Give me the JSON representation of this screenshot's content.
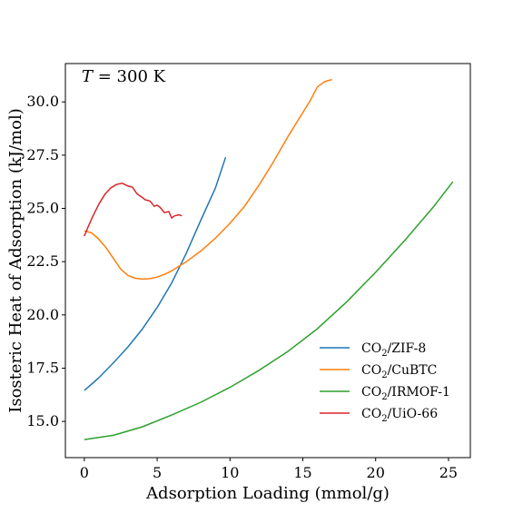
{
  "chart_data": {
    "type": "line",
    "title": "",
    "annotation": {
      "var": "T",
      "text": " = 300 K"
    },
    "xlabel": "Adsorption Loading (mmol/g)",
    "ylabel": "Isosteric Heat of Adsorption (kJ/mol)",
    "xlim": [
      -1.3,
      26.5
    ],
    "ylim": [
      13.3,
      31.8
    ],
    "xticks": [
      0,
      5,
      10,
      15,
      20,
      25
    ],
    "xtick_labels": [
      "0",
      "5",
      "10",
      "15",
      "20",
      "25"
    ],
    "yticks": [
      15.0,
      17.5,
      20.0,
      22.5,
      25.0,
      27.5,
      30.0
    ],
    "ytick_labels": [
      "15.0",
      "17.5",
      "20.0",
      "22.5",
      "25.0",
      "27.5",
      "30.0"
    ],
    "grid": false,
    "legend_position": "lower-right",
    "series": [
      {
        "name": "CO2/ZIF-8",
        "legend_main": "CO",
        "legend_sub": "2",
        "legend_rest": "/ZIF-8",
        "color": "#1f77b4",
        "x": [
          0.0,
          1.0,
          2.0,
          3.0,
          4.0,
          5.0,
          6.0,
          7.0,
          8.0,
          9.0,
          9.7
        ],
        "y": [
          16.45,
          17.05,
          17.75,
          18.5,
          19.35,
          20.35,
          21.5,
          22.9,
          24.45,
          25.95,
          27.4
        ]
      },
      {
        "name": "CO2/CuBTC",
        "legend_main": "CO",
        "legend_sub": "2",
        "legend_rest": "/CuBTC",
        "color": "#ff7f0e",
        "x": [
          0.0,
          0.5,
          1.0,
          1.5,
          2.0,
          2.5,
          3.0,
          3.5,
          4.0,
          4.5,
          5.0,
          5.5,
          6.0,
          7.0,
          8.0,
          9.0,
          10.0,
          11.0,
          12.0,
          13.0,
          14.0,
          15.0,
          15.5,
          16.0,
          16.5,
          17.0
        ],
        "y": [
          23.95,
          23.85,
          23.55,
          23.15,
          22.65,
          22.15,
          21.85,
          21.72,
          21.68,
          21.7,
          21.78,
          21.9,
          22.07,
          22.5,
          23.0,
          23.6,
          24.3,
          25.1,
          26.1,
          27.2,
          28.4,
          29.5,
          30.05,
          30.7,
          30.95,
          31.05
        ]
      },
      {
        "name": "CO2/IRMOF-1",
        "legend_main": "CO",
        "legend_sub": "2",
        "legend_rest": "/IRMOF-1",
        "color": "#2ca02c",
        "x": [
          0,
          2,
          4,
          6,
          8,
          10,
          12,
          14,
          16,
          18,
          20,
          22,
          24,
          25.3
        ],
        "y": [
          14.15,
          14.35,
          14.75,
          15.3,
          15.9,
          16.6,
          17.4,
          18.3,
          19.35,
          20.6,
          22.0,
          23.5,
          25.1,
          26.25
        ]
      },
      {
        "name": "CO2/UiO-66",
        "legend_main": "CO",
        "legend_sub": "2",
        "legend_rest": "/UiO-66",
        "color": "#d62728",
        "x": [
          0.0,
          0.3,
          0.6,
          1.0,
          1.4,
          1.8,
          2.2,
          2.6,
          3.0,
          3.3,
          3.6,
          3.9,
          4.2,
          4.5,
          4.8,
          5.0,
          5.2,
          5.5,
          5.8,
          6.0,
          6.2,
          6.5,
          6.7
        ],
        "y": [
          23.7,
          24.2,
          24.65,
          25.2,
          25.65,
          25.95,
          26.12,
          26.18,
          26.05,
          26.0,
          25.7,
          25.55,
          25.4,
          25.35,
          25.1,
          25.15,
          25.05,
          24.8,
          24.85,
          24.55,
          24.65,
          24.7,
          24.65
        ]
      }
    ]
  }
}
